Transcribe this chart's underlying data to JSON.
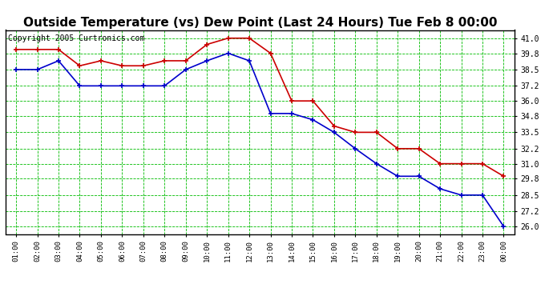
{
  "title": "Outside Temperature (vs) Dew Point (Last 24 Hours) Tue Feb 8 00:00",
  "copyright": "Copyright 2005 Curtronics.com",
  "x_labels": [
    "01:00",
    "02:00",
    "03:00",
    "04:00",
    "05:00",
    "06:00",
    "07:00",
    "08:00",
    "09:00",
    "10:00",
    "11:00",
    "12:00",
    "13:00",
    "14:00",
    "15:00",
    "16:00",
    "17:00",
    "18:00",
    "19:00",
    "20:00",
    "21:00",
    "22:00",
    "23:00",
    "00:00"
  ],
  "temp_red": [
    40.1,
    40.1,
    40.1,
    38.8,
    39.2,
    38.8,
    38.8,
    39.2,
    39.2,
    40.5,
    41.0,
    41.0,
    39.8,
    36.0,
    36.0,
    34.0,
    33.5,
    33.5,
    32.2,
    32.2,
    31.0,
    31.0,
    31.0,
    30.0
  ],
  "temp_blue": [
    38.5,
    38.5,
    39.2,
    37.2,
    37.2,
    37.2,
    37.2,
    37.2,
    38.5,
    39.2,
    39.8,
    39.2,
    35.0,
    35.0,
    34.5,
    33.5,
    32.2,
    31.0,
    30.0,
    30.0,
    29.0,
    28.5,
    28.5,
    26.0
  ],
  "ylim_min": 25.4,
  "ylim_max": 41.65,
  "yticks": [
    26.0,
    27.2,
    28.5,
    29.8,
    31.0,
    32.2,
    33.5,
    34.8,
    36.0,
    37.2,
    38.5,
    39.8,
    41.0
  ],
  "bg_color": "#ffffff",
  "plot_bg_color": "#ffffff",
  "grid_color": "#00bb00",
  "line_color_red": "#cc0000",
  "line_color_blue": "#0000cc",
  "title_fontsize": 11,
  "copyright_fontsize": 7
}
